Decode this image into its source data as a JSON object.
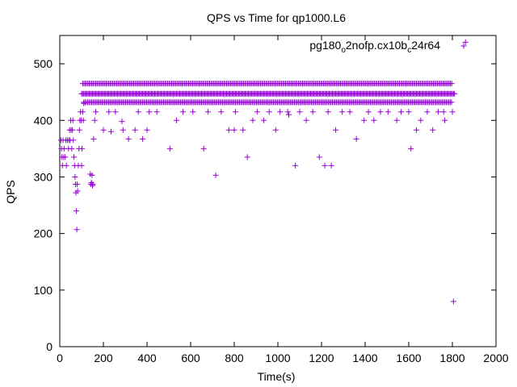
{
  "chart_data": {
    "type": "scatter",
    "title": "QPS vs Time for qp1000.L6",
    "xlabel": "Time(s)",
    "ylabel": "QPS",
    "xlim": [
      0,
      2000
    ],
    "ylim": [
      0,
      550
    ],
    "xticks": [
      0,
      200,
      400,
      600,
      800,
      1000,
      1200,
      1400,
      1600,
      1800,
      2000
    ],
    "yticks": [
      0,
      100,
      200,
      300,
      400,
      500
    ],
    "grid": false,
    "legend_position": "top-right",
    "marker": "+",
    "series": [
      {
        "name_parts": {
          "base": "pg180",
          "sub1": "o",
          "mid": "2nofp.cx10b",
          "sub2": "c",
          "tail": "24r64"
        },
        "color": "#9400d3",
        "dense_bands": [
          {
            "y": 465,
            "x_start": 105,
            "x_end": 1800,
            "step": 6
          },
          {
            "y": 447,
            "x_start": 100,
            "x_end": 1810,
            "step": 5
          },
          {
            "y": 432,
            "x_start": 110,
            "x_end": 1800,
            "step": 6
          }
        ],
        "points": [
          [
            5,
            365
          ],
          [
            8,
            350
          ],
          [
            10,
            335
          ],
          [
            12,
            320
          ],
          [
            15,
            365
          ],
          [
            18,
            335
          ],
          [
            20,
            350
          ],
          [
            25,
            335
          ],
          [
            28,
            365
          ],
          [
            30,
            320
          ],
          [
            35,
            365
          ],
          [
            40,
            350
          ],
          [
            42,
            365
          ],
          [
            45,
            383
          ],
          [
            48,
            365
          ],
          [
            50,
            400
          ],
          [
            52,
            383
          ],
          [
            55,
            350
          ],
          [
            58,
            383
          ],
          [
            60,
            400
          ],
          [
            62,
            365
          ],
          [
            65,
            335
          ],
          [
            68,
            320
          ],
          [
            70,
            300
          ],
          [
            72,
            287
          ],
          [
            74,
            272
          ],
          [
            76,
            240
          ],
          [
            78,
            207
          ],
          [
            80,
            287
          ],
          [
            82,
            275
          ],
          [
            85,
            320
          ],
          [
            88,
            350
          ],
          [
            90,
            383
          ],
          [
            92,
            400
          ],
          [
            95,
            415
          ],
          [
            98,
            400
          ],
          [
            100,
            320
          ],
          [
            102,
            350
          ],
          [
            105,
            415
          ],
          [
            108,
            400
          ],
          [
            110,
            430
          ],
          [
            140,
            305
          ],
          [
            142,
            287
          ],
          [
            145,
            290
          ],
          [
            148,
            303
          ],
          [
            150,
            285
          ],
          [
            152,
            287
          ],
          [
            155,
            367
          ],
          [
            160,
            400
          ],
          [
            165,
            415
          ],
          [
            200,
            383
          ],
          [
            225,
            415
          ],
          [
            235,
            380
          ],
          [
            255,
            415
          ],
          [
            285,
            398
          ],
          [
            290,
            383
          ],
          [
            315,
            367
          ],
          [
            345,
            383
          ],
          [
            360,
            415
          ],
          [
            380,
            367
          ],
          [
            400,
            383
          ],
          [
            410,
            415
          ],
          [
            445,
            415
          ],
          [
            505,
            350
          ],
          [
            535,
            400
          ],
          [
            565,
            415
          ],
          [
            610,
            415
          ],
          [
            660,
            350
          ],
          [
            680,
            415
          ],
          [
            715,
            303
          ],
          [
            740,
            415
          ],
          [
            775,
            383
          ],
          [
            800,
            383
          ],
          [
            805,
            415
          ],
          [
            840,
            383
          ],
          [
            860,
            335
          ],
          [
            885,
            400
          ],
          [
            905,
            415
          ],
          [
            935,
            400
          ],
          [
            960,
            415
          ],
          [
            990,
            383
          ],
          [
            1010,
            415
          ],
          [
            1045,
            415
          ],
          [
            1050,
            410
          ],
          [
            1080,
            320
          ],
          [
            1100,
            415
          ],
          [
            1130,
            400
          ],
          [
            1160,
            415
          ],
          [
            1190,
            335
          ],
          [
            1215,
            320
          ],
          [
            1230,
            415
          ],
          [
            1245,
            320
          ],
          [
            1265,
            383
          ],
          [
            1295,
            415
          ],
          [
            1330,
            415
          ],
          [
            1360,
            367
          ],
          [
            1395,
            400
          ],
          [
            1415,
            415
          ],
          [
            1440,
            400
          ],
          [
            1470,
            415
          ],
          [
            1505,
            415
          ],
          [
            1545,
            400
          ],
          [
            1565,
            415
          ],
          [
            1600,
            415
          ],
          [
            1610,
            350
          ],
          [
            1635,
            383
          ],
          [
            1655,
            400
          ],
          [
            1685,
            415
          ],
          [
            1710,
            383
          ],
          [
            1735,
            415
          ],
          [
            1760,
            415
          ],
          [
            1765,
            400
          ],
          [
            1800,
            415
          ],
          [
            1805,
            80
          ],
          [
            1860,
            538
          ]
        ]
      }
    ]
  }
}
